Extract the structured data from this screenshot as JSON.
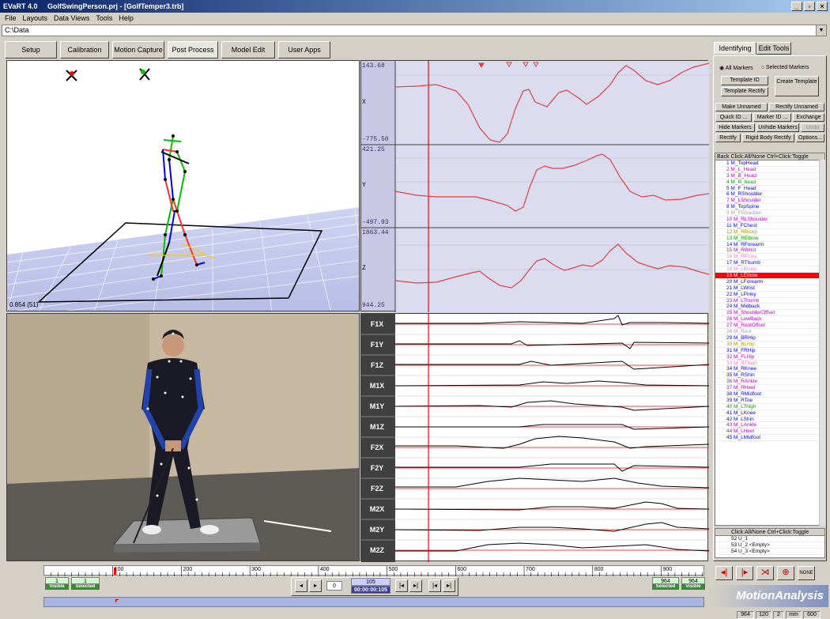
{
  "window": {
    "app": "EVaRT 4.0",
    "title": "GolfSwingPerson.prj - [GolfTemper3.trb]",
    "buttons": [
      "_",
      "▫",
      "×"
    ]
  },
  "menu": [
    "File",
    "Layouts",
    "Data Views",
    "Tools",
    "Help"
  ],
  "path": "C:\\Data",
  "tabs": [
    {
      "label": "Setup",
      "active": false
    },
    {
      "label": "Calibration",
      "active": false
    },
    {
      "label": "Motion Capture",
      "active": false
    },
    {
      "label": "Post Process",
      "active": true
    },
    {
      "label": "Model Edit",
      "active": false
    },
    {
      "label": "User Apps",
      "active": false
    }
  ],
  "view3d": {
    "readout": "0.854 (51)"
  },
  "traj": {
    "plots": [
      {
        "axis": "X",
        "ymax": "143.68",
        "ymin": "-775.50"
      },
      {
        "axis": "Y",
        "ymax": "421.25",
        "ymin": "-497.93"
      },
      {
        "axis": "Z",
        "ymax": "1863.44",
        "ymin": "944.25"
      }
    ]
  },
  "force": {
    "labels": [
      "F1X",
      "F1Y",
      "F1Z",
      "M1X",
      "M1Y",
      "M1Z",
      "F2X",
      "F2Y",
      "F2Z",
      "M2X",
      "M2Y",
      "M2Z"
    ]
  },
  "right": {
    "tabs": [
      {
        "label": "Identifying",
        "active": true
      },
      {
        "label": "Edit Tools",
        "active": false
      }
    ],
    "radio_all": "All Markers",
    "radio_sel": "Selected Markers",
    "template_id": "Template ID",
    "template_rectify": "Template Rectify",
    "create_template": "Create Template",
    "make_unnamed": "Make Unnamed",
    "rectify_unnamed": "Rectify Unnamed",
    "quick_id": "Quick ID ...",
    "marker_id": "Marker ID ...",
    "exchange": "Exchange",
    "hide_markers": "Hide Markers",
    "unhide_markers": "Unhide Markers",
    "undo": "Undo",
    "rectify": "Rectify",
    "rigid_body_rectify": "Rigid Body Rectify",
    "options": "Options...",
    "list_header": "Back  Click:All/None  Ctrl+Click:Toggle",
    "markers": [
      {
        "label": "1 M_TopHead",
        "color": "#0000ff"
      },
      {
        "label": "2 M_L_Head",
        "color": "#c000c0"
      },
      {
        "label": "3 M_B_Head",
        "color": "#c000c0"
      },
      {
        "label": "4 M_R_head",
        "color": "#00a000"
      },
      {
        "label": "5 M_F_Head",
        "color": "#0000ff"
      },
      {
        "label": "6 M_RShoulder",
        "color": "#0000ff"
      },
      {
        "label": "7 M_LShoulder",
        "color": "#c000c0"
      },
      {
        "label": "8 M_TopSpine",
        "color": "#0000ff"
      },
      {
        "label": "9 M_FShoulder",
        "color": "#a0a0a0"
      },
      {
        "label": "10 M_RLShoulder",
        "color": "#c000c0"
      },
      {
        "label": "11 M_FChest",
        "color": "#0000ff"
      },
      {
        "label": "12 M_RBicep",
        "color": "#a0a000"
      },
      {
        "label": "13 M_RElbow",
        "color": "#00a000"
      },
      {
        "label": "14 M_RForearm",
        "color": "#0000ff"
      },
      {
        "label": "15 M_RWrist",
        "color": "#c000c0"
      },
      {
        "label": "16 M_RPinky",
        "color": "#ff80c0"
      },
      {
        "label": "17 M_RThumb",
        "color": "#0000ff"
      },
      {
        "label": "18 M_LBicep",
        "color": "#ff80c0"
      },
      {
        "label": "19 M_LElbow",
        "color": "#ffffff",
        "selected": true
      },
      {
        "label": "20 M_LForearm",
        "color": "#0000ff"
      },
      {
        "label": "21 M_LWrist",
        "color": "#0000ff"
      },
      {
        "label": "22 M_LPinky",
        "color": "#0000ff"
      },
      {
        "label": "23 M_LThumb",
        "color": "#c000c0"
      },
      {
        "label": "24 M_Midback",
        "color": "#0000ff"
      },
      {
        "label": "25 M_ShoulderOffset",
        "color": "#c000c0"
      },
      {
        "label": "26 M_LowBack",
        "color": "#c000c0"
      },
      {
        "label": "27 M_RootOffset",
        "color": "#c000c0"
      },
      {
        "label": "28 M_Root",
        "color": "#a0a0a0"
      },
      {
        "label": "29 M_BRHip",
        "color": "#0000ff"
      },
      {
        "label": "30 M_BLHip",
        "color": "#a0a000"
      },
      {
        "label": "31 M_FRHip",
        "color": "#0000ff"
      },
      {
        "label": "32 M_FLHip",
        "color": "#c000c0"
      },
      {
        "label": "33 M_RThigh",
        "color": "#ff80c0"
      },
      {
        "label": "34 M_RKnee",
        "color": "#0000ff"
      },
      {
        "label": "35 M_RShin",
        "color": "#0000ff"
      },
      {
        "label": "36 M_RAnkle",
        "color": "#c000c0"
      },
      {
        "label": "37 M_RHeel",
        "color": "#c000c0"
      },
      {
        "label": "38 M_RMidfoot",
        "color": "#0000ff"
      },
      {
        "label": "39 M_RToe",
        "color": "#0000ff"
      },
      {
        "label": "40 M_LThigh",
        "color": "#00a000"
      },
      {
        "label": "41 M_LKnee",
        "color": "#0000ff"
      },
      {
        "label": "42 M_LShin",
        "color": "#0000ff"
      },
      {
        "label": "43 M_LAnkle",
        "color": "#c000c0"
      },
      {
        "label": "44 M_LHeel",
        "color": "#c000c0"
      },
      {
        "label": "45 M_LMidfoot",
        "color": "#0000ff"
      }
    ],
    "list2_header": "Click:All/None  Ctrl+Click:Toggle",
    "unnamed": [
      "52 U_1",
      "53 U_2 <Empty>",
      "54 U_3 <Empty>"
    ],
    "tool_icons": [
      "left-arrow-icon",
      "right-arrow-icon",
      "split-icon",
      "merge-icon"
    ],
    "none_label": "NONE"
  },
  "timeline": {
    "ticks": [
      "100",
      "200",
      "300",
      "400",
      "500",
      "600",
      "700",
      "800",
      "900"
    ],
    "range": [
      0,
      964
    ],
    "cursor_frame": 105
  },
  "counters": {
    "visible_left": "1",
    "selected_left": "1",
    "visible_label": "Visible",
    "selected_label": "Selected",
    "frame_step": "0",
    "frame": "105",
    "timecode": "00:00:00:105",
    "selected_right": "964",
    "visible_right": "964"
  },
  "brand": "MotionAnalysis",
  "status": [
    "964",
    "120",
    "2",
    "mm",
    "600"
  ],
  "colors": {
    "plot_line": "#e04040",
    "cursor": "#ff0000",
    "selected_marker": "#ff0000"
  }
}
